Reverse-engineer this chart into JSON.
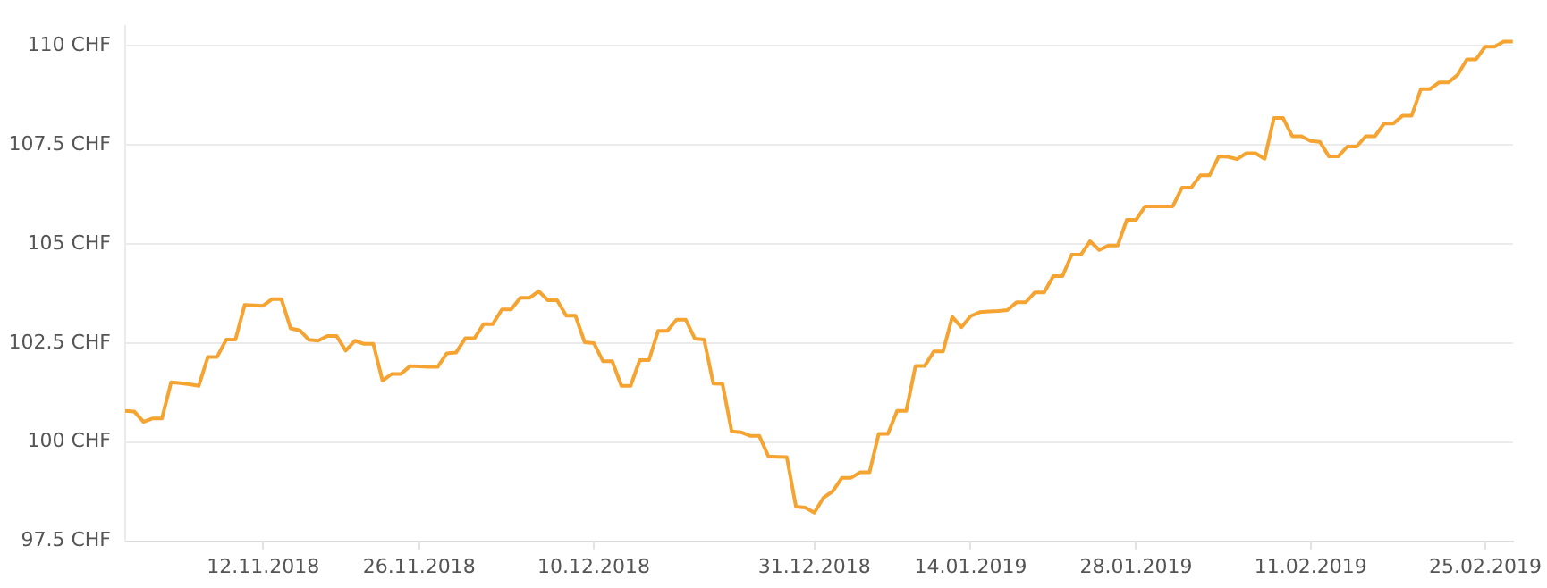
{
  "chart_data": {
    "type": "line",
    "categories": [
      null,
      null,
      null,
      null,
      null,
      null,
      null,
      null,
      null,
      null,
      null,
      null,
      null,
      null,
      null,
      "12.11.2018",
      null,
      null,
      null,
      null,
      null,
      null,
      null,
      null,
      null,
      null,
      null,
      null,
      null,
      null,
      null,
      null,
      "26.11.2018",
      null,
      null,
      null,
      null,
      null,
      null,
      null,
      null,
      null,
      null,
      null,
      null,
      null,
      null,
      null,
      null,
      null,
      null,
      "10.12.2018",
      null,
      null,
      null,
      null,
      null,
      null,
      null,
      null,
      null,
      null,
      null,
      null,
      null,
      null,
      null,
      null,
      null,
      null,
      null,
      null,
      null,
      null,
      null,
      "31.12.2018",
      null,
      null,
      null,
      null,
      null,
      null,
      null,
      null,
      null,
      null,
      null,
      null,
      null,
      null,
      null,
      null,
      "14.01.2019",
      null,
      null,
      null,
      null,
      null,
      null,
      null,
      null,
      null,
      null,
      null,
      null,
      null,
      null,
      null,
      null,
      null,
      "28.01.2019",
      null,
      null,
      null,
      null,
      null,
      null,
      null,
      null,
      null,
      null,
      null,
      null,
      null,
      null,
      null,
      null,
      null,
      null,
      "11.02.2019",
      null,
      null,
      null,
      null,
      null,
      null,
      null,
      null,
      null,
      null,
      null,
      null,
      null,
      null,
      null,
      null,
      null,
      null,
      "25.02.2019",
      null,
      null,
      null
    ],
    "series": [
      {
        "color": "#f5a331",
        "values": [
          100.79,
          100.77,
          100.51,
          100.6,
          100.6,
          101.51,
          101.49,
          101.46,
          101.42,
          102.15,
          102.15,
          102.59,
          102.59,
          103.46,
          103.45,
          103.44,
          103.61,
          103.61,
          102.87,
          102.82,
          102.58,
          102.56,
          102.68,
          102.68,
          102.31,
          102.56,
          102.48,
          102.48,
          101.55,
          101.72,
          101.72,
          101.92,
          101.91,
          101.9,
          101.9,
          102.24,
          102.26,
          102.62,
          102.62,
          102.98,
          102.98,
          103.35,
          103.35,
          103.64,
          103.64,
          103.81,
          103.58,
          103.58,
          103.19,
          103.19,
          102.52,
          102.5,
          102.04,
          102.04,
          101.42,
          101.42,
          102.07,
          102.07,
          102.81,
          102.81,
          103.09,
          103.09,
          102.61,
          102.59,
          101.48,
          101.47,
          100.27,
          100.25,
          100.16,
          100.16,
          99.64,
          99.63,
          99.62,
          98.37,
          98.35,
          98.22,
          98.6,
          98.76,
          99.1,
          99.1,
          99.24,
          99.24,
          100.21,
          100.21,
          100.79,
          100.79,
          101.92,
          101.92,
          102.29,
          102.29,
          103.16,
          102.9,
          103.18,
          103.28,
          103.3,
          103.31,
          103.33,
          103.53,
          103.53,
          103.78,
          103.78,
          104.19,
          104.19,
          104.73,
          104.73,
          105.07,
          104.85,
          104.96,
          104.96,
          105.61,
          105.61,
          105.95,
          105.95,
          105.95,
          105.95,
          106.42,
          106.42,
          106.73,
          106.73,
          107.21,
          107.2,
          107.14,
          107.29,
          107.29,
          107.15,
          108.18,
          108.18,
          107.72,
          107.72,
          107.6,
          107.58,
          107.21,
          107.21,
          107.46,
          107.46,
          107.72,
          107.72,
          108.04,
          108.04,
          108.24,
          108.24,
          108.91,
          108.91,
          109.08,
          109.08,
          109.27,
          109.66,
          109.66,
          109.98,
          109.98,
          110.11,
          110.11
        ]
      }
    ],
    "ylim": [
      97.5,
      110.5
    ],
    "yticks": [
      {
        "value": 97.5,
        "label": "97.5 CHF"
      },
      {
        "value": 100,
        "label": "100 CHF"
      },
      {
        "value": 102.5,
        "label": "102.5 CHF"
      },
      {
        "value": 105,
        "label": "105 CHF"
      },
      {
        "value": 107.5,
        "label": "107.5 CHF"
      },
      {
        "value": 110,
        "label": "110 CHF"
      }
    ],
    "grid": "y",
    "legend": false,
    "marker": "none",
    "line_style": "solid"
  }
}
